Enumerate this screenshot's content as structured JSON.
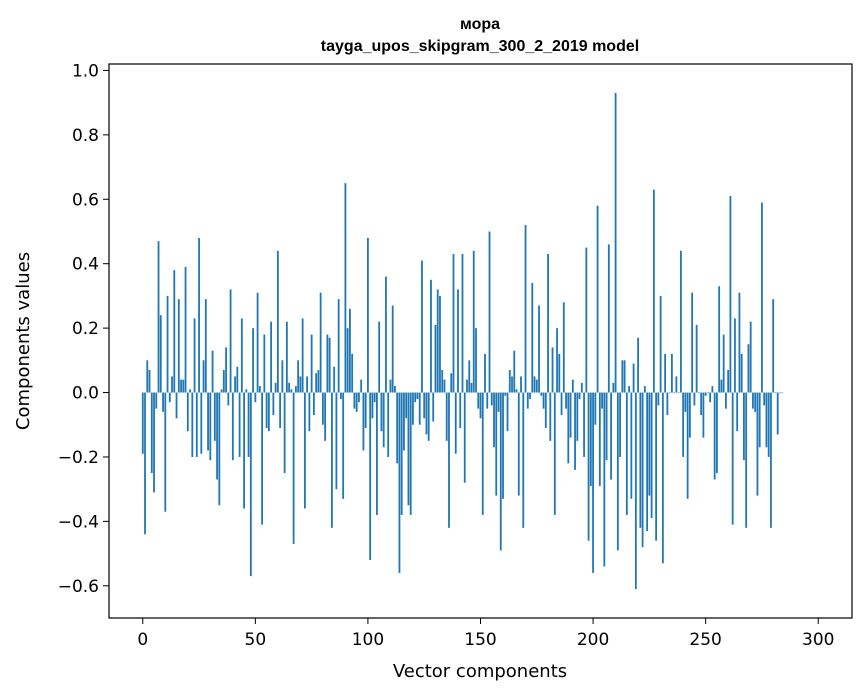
{
  "chart_data": {
    "type": "bar",
    "title": "мора",
    "subtitle": "tayga_upos_skipgram_300_2_2019 model",
    "xlabel": "Vector components",
    "ylabel": "Components values",
    "xlim": [
      -15,
      315
    ],
    "ylim": [
      -0.7,
      1.02
    ],
    "xticks": [
      0,
      50,
      100,
      150,
      200,
      250,
      300
    ],
    "yticks": [
      -0.6,
      -0.4,
      -0.2,
      0.0,
      0.2,
      0.4,
      0.6,
      0.8,
      1.0
    ],
    "xtick_labels": [
      "0",
      "50",
      "100",
      "150",
      "200",
      "250",
      "300"
    ],
    "ytick_labels": [
      "−0.6",
      "−0.4",
      "−0.2",
      "0.0",
      "0.2",
      "0.4",
      "0.6",
      "0.8",
      "1.0"
    ],
    "bar_color": "#1f77b4",
    "values": [
      -0.19,
      -0.44,
      0.1,
      0.07,
      -0.25,
      -0.31,
      -0.05,
      0.47,
      0.24,
      -0.06,
      -0.37,
      0.3,
      -0.03,
      0.05,
      0.38,
      -0.08,
      0.29,
      0.04,
      0.04,
      0.39,
      -0.12,
      0.01,
      -0.2,
      0.23,
      -0.2,
      0.48,
      -0.19,
      0.1,
      0.29,
      -0.18,
      -0.21,
      0.13,
      -0.15,
      -0.27,
      -0.35,
      0.01,
      0.07,
      0.14,
      -0.04,
      0.32,
      -0.21,
      0.05,
      0.08,
      -0.2,
      0.23,
      -0.36,
      0.01,
      -0.2,
      -0.57,
      0.2,
      -0.03,
      0.31,
      0.02,
      -0.41,
      0.18,
      -0.11,
      -0.12,
      0.22,
      -0.07,
      0.03,
      0.44,
      -0.11,
      0.1,
      -0.25,
      0.22,
      0.03,
      0.01,
      -0.47,
      0.02,
      0.1,
      0.05,
      0.23,
      -0.36,
      0.05,
      -0.12,
      0.18,
      -0.07,
      0.06,
      0.07,
      0.31,
      -0.1,
      -0.15,
      0.18,
      0.17,
      -0.42,
      0.08,
      -0.3,
      0.29,
      -0.02,
      -0.33,
      0.65,
      0.2,
      0.26,
      0.12,
      -0.05,
      -0.06,
      -0.03,
      0.04,
      -0.18,
      -0.11,
      0.48,
      -0.52,
      -0.08,
      -0.03,
      -0.38,
      0.22,
      -0.12,
      -0.17,
      0.36,
      -0.2,
      0.04,
      0.27,
      0.02,
      -0.22,
      -0.56,
      -0.38,
      -0.18,
      -0.08,
      -0.35,
      -0.38,
      -0.1,
      -0.03,
      -0.02,
      -0.1,
      0.41,
      -0.08,
      -0.13,
      -0.15,
      0.35,
      -0.09,
      0.21,
      0.32,
      0.3,
      0.07,
      0.04,
      -0.15,
      -0.42,
      0.06,
      0.43,
      -0.19,
      0.32,
      -0.11,
      0.43,
      -0.28,
      0.04,
      0.1,
      0.03,
      0.44,
      0.2,
      -0.05,
      -0.08,
      -0.38,
      0.12,
      -0.05,
      0.5,
      -0.04,
      -0.17,
      -0.32,
      -0.06,
      -0.49,
      -0.33,
      -0.01,
      -0.12,
      0.07,
      0.05,
      0.13,
      0.01,
      -0.32,
      0.05,
      -0.42,
      0.52,
      -0.05,
      -0.02,
      0.34,
      0.05,
      0.04,
      0.27,
      -0.01,
      -0.05,
      -0.11,
      0.43,
      -0.15,
      0.14,
      -0.38,
      0.2,
      0.12,
      -0.07,
      0.28,
      -0.05,
      -0.22,
      -0.14,
      0.04,
      -0.24,
      -0.15,
      -0.02,
      0.03,
      -0.2,
      0.45,
      -0.46,
      -0.29,
      -0.56,
      -0.1,
      0.58,
      -0.29,
      -0.05,
      -0.54,
      -0.21,
      0.46,
      -0.27,
      0.03,
      0.93,
      -0.49,
      -0.2,
      0.1,
      0.1,
      -0.38,
      0.02,
      -0.33,
      0.09,
      -0.61,
      0.17,
      -0.42,
      -0.48,
      0.02,
      -0.43,
      -0.32,
      -0.39,
      0.63,
      -0.46,
      -0.04,
      0.3,
      -0.53,
      0.12,
      -0.07,
      0.0,
      0.12,
      0.0,
      0.05,
      0.0,
      0.44,
      -0.2,
      -0.06,
      -0.33,
      -0.14,
      0.31,
      -0.04,
      0.21,
      0.0,
      -0.07,
      -0.14,
      -0.01,
      0.0,
      -0.03,
      0.02,
      -0.27,
      -0.25,
      0.33,
      0.04,
      0.18,
      -0.05,
      0.07,
      0.61,
      -0.41,
      0.23,
      -0.12,
      0.31,
      0.12,
      -0.21,
      -0.42,
      0.15,
      0.22,
      -0.05,
      -0.06,
      -0.32,
      -0.17,
      0.59,
      -0.04,
      -0.17,
      -0.2,
      -0.42,
      0.29,
      0.0,
      -0.13,
      0.0,
      0.0
    ]
  }
}
